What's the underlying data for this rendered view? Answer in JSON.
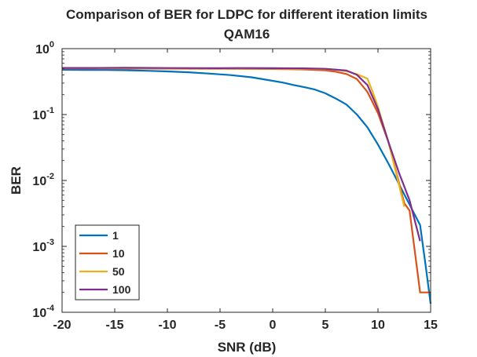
{
  "chart_data": {
    "type": "line",
    "title": "Comparison of BER for LDPC for different iteration limits",
    "subtitle": "QAM16",
    "xlabel": "SNR (dB)",
    "ylabel": "BER",
    "xlim": [
      -20,
      15
    ],
    "ylim": [
      0.0001,
      1
    ],
    "yscale": "log",
    "grid": false,
    "legend_position": "bottom-left",
    "x_ticks": [
      "-20",
      "-15",
      "-10",
      "-5",
      "0",
      "5",
      "10",
      "15"
    ],
    "y_ticks": [
      {
        "base": "10",
        "exp": "0"
      },
      {
        "base": "10",
        "exp": "-1"
      },
      {
        "base": "10",
        "exp": "-2"
      },
      {
        "base": "10",
        "exp": "-3"
      },
      {
        "base": "10",
        "exp": "-4"
      }
    ],
    "series": [
      {
        "name": "1",
        "color": "#0072BD",
        "points": [
          [
            -20,
            0.478
          ],
          [
            -18,
            0.476
          ],
          [
            -16,
            0.474
          ],
          [
            -14,
            0.47
          ],
          [
            -12,
            0.462
          ],
          [
            -10,
            0.452
          ],
          [
            -8,
            0.438
          ],
          [
            -6,
            0.418
          ],
          [
            -4,
            0.397
          ],
          [
            -2,
            0.368
          ],
          [
            0,
            0.325
          ],
          [
            1,
            0.305
          ],
          [
            2,
            0.28
          ],
          [
            3,
            0.26
          ],
          [
            4,
            0.24
          ],
          [
            5,
            0.21
          ],
          [
            6,
            0.175
          ],
          [
            7,
            0.142
          ],
          [
            8,
            0.1
          ],
          [
            9,
            0.064
          ],
          [
            10,
            0.035
          ],
          [
            11,
            0.018
          ],
          [
            12,
            0.0088
          ],
          [
            13,
            0.0043
          ],
          [
            14,
            0.0021
          ],
          [
            14.5,
            0.00055
          ],
          [
            15,
            0.000135
          ]
        ]
      },
      {
        "name": "10",
        "color": "#D95319",
        "points": [
          [
            -20,
            0.5
          ],
          [
            -15,
            0.5
          ],
          [
            -10,
            0.497
          ],
          [
            -5,
            0.495
          ],
          [
            0,
            0.492
          ],
          [
            3,
            0.483
          ],
          [
            5,
            0.468
          ],
          [
            6,
            0.447
          ],
          [
            7,
            0.412
          ],
          [
            8,
            0.345
          ],
          [
            9,
            0.22
          ],
          [
            10,
            0.105
          ],
          [
            11,
            0.038
          ],
          [
            12,
            0.0092
          ],
          [
            12.5,
            0.0045
          ],
          [
            13,
            0.0035
          ],
          [
            14,
            0.0002
          ],
          [
            15,
            0.0002
          ]
        ]
      },
      {
        "name": "50",
        "color": "#EDB120",
        "points": [
          [
            -20,
            0.505
          ],
          [
            -15,
            0.505
          ],
          [
            -10,
            0.502
          ],
          [
            -5,
            0.5
          ],
          [
            0,
            0.498
          ],
          [
            3,
            0.495
          ],
          [
            5,
            0.49
          ],
          [
            6,
            0.478
          ],
          [
            7,
            0.455
          ],
          [
            8,
            0.41
          ],
          [
            9,
            0.35
          ],
          [
            9.5,
            0.22
          ],
          [
            10,
            0.13
          ],
          [
            11,
            0.038
          ],
          [
            12,
            0.0085
          ],
          [
            12.5,
            0.004
          ]
        ]
      },
      {
        "name": "100",
        "color": "#7E2F8E",
        "points": [
          [
            -20,
            0.51
          ],
          [
            -17,
            0.51
          ],
          [
            -14,
            0.512
          ],
          [
            -10,
            0.508
          ],
          [
            -5,
            0.505
          ],
          [
            -3,
            0.508
          ],
          [
            0,
            0.505
          ],
          [
            3,
            0.502
          ],
          [
            5,
            0.495
          ],
          [
            7,
            0.465
          ],
          [
            8,
            0.4
          ],
          [
            9,
            0.28
          ],
          [
            10,
            0.12
          ],
          [
            11,
            0.038
          ],
          [
            12,
            0.013
          ],
          [
            13,
            0.005
          ],
          [
            14,
            0.0012
          ]
        ]
      }
    ]
  }
}
